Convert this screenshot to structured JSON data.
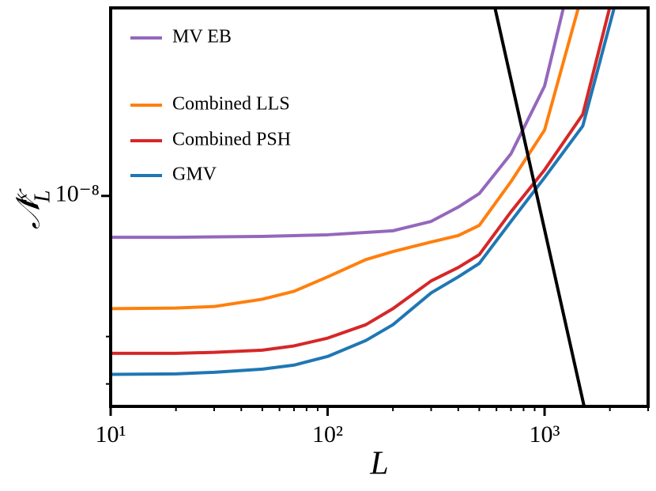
{
  "chart_data": {
    "type": "line",
    "xlabel": "L",
    "ylabel": {
      "base": "𝒩",
      "sub": "L",
      "sup": "κ"
    },
    "xscale": "log",
    "yscale": "log",
    "grid": false,
    "legend": "upper left",
    "xlim": [
      10,
      3000
    ],
    "ylim": [
      1.65e-09,
      5e-08
    ],
    "xticks": [
      {
        "value": 10,
        "label": "10¹"
      },
      {
        "value": 100,
        "label": "10²"
      },
      {
        "value": 1000,
        "label": "10³"
      }
    ],
    "xminor_ticks": [
      20,
      30,
      40,
      50,
      60,
      70,
      80,
      90,
      200,
      300,
      400,
      500,
      600,
      700,
      800,
      900,
      2000,
      3000
    ],
    "yticks": [
      {
        "value": 1e-08,
        "label": "10⁻⁸"
      }
    ],
    "yminor_ticks": [
      2e-09,
      3e-09
    ],
    "series": [
      {
        "name": "MV EB",
        "color": "#9467bd",
        "x": [
          10,
          20,
          50,
          100,
          200,
          300,
          400,
          500,
          700,
          1000,
          1225
        ],
        "values": [
          7.02e-09,
          7.02e-09,
          7.07e-09,
          7.17e-09,
          7.42e-09,
          8.04e-09,
          9.09e-09,
          1.02e-08,
          1.434e-08,
          2.56e-08,
          5.05e-08
        ]
      },
      {
        "name": "Combined LLS",
        "color": "#ff7f0e",
        "x": [
          10,
          20,
          30,
          50,
          70,
          100,
          150,
          200,
          300,
          400,
          500,
          700,
          1000,
          1436
        ],
        "values": [
          3.81e-09,
          3.83e-09,
          3.88e-09,
          4.13e-09,
          4.42e-09,
          5e-09,
          5.8e-09,
          6.21e-09,
          6.74e-09,
          7.12e-09,
          7.77e-09,
          1.13e-08,
          1.758e-08,
          5.05e-08
        ]
      },
      {
        "name": "Combined PSH",
        "color": "#d62728",
        "x": [
          10,
          20,
          30,
          50,
          70,
          100,
          150,
          200,
          300,
          400,
          500,
          700,
          1000,
          1500,
          2000
        ],
        "values": [
          2.6e-09,
          2.6e-09,
          2.62e-09,
          2.67e-09,
          2.77e-09,
          2.96e-09,
          3.32e-09,
          3.81e-09,
          4.83e-09,
          5.42e-09,
          6.05e-09,
          8.73e-09,
          1.25e-08,
          2.01e-08,
          5.05e-08
        ]
      },
      {
        "name": "GMV",
        "color": "#1f77b4",
        "x": [
          10,
          20,
          30,
          50,
          70,
          100,
          150,
          200,
          300,
          400,
          500,
          700,
          1000,
          1500,
          2100
        ],
        "values": [
          2.17e-09,
          2.18e-09,
          2.21e-09,
          2.27e-09,
          2.35e-09,
          2.53e-09,
          2.9e-09,
          3.32e-09,
          4.36e-09,
          5e-09,
          5.61e-09,
          8.04e-09,
          1.17e-08,
          1.82e-08,
          5.05e-08
        ]
      },
      {
        "color": "#000000",
        "x": [
          589,
          1524
        ],
        "values": [
          5.05e-08,
          1.64e-09
        ]
      }
    ]
  }
}
